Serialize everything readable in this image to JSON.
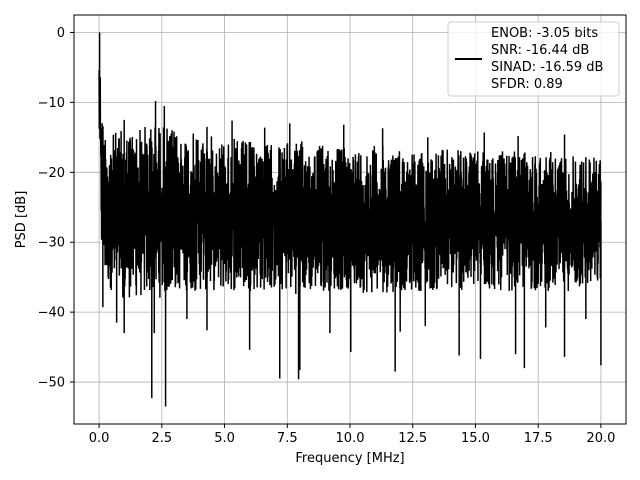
{
  "chart_data": {
    "type": "line",
    "xlabel": "Frequency [MHz]",
    "ylabel": "PSD [dB]",
    "xlim": [
      -1.0,
      21.0
    ],
    "ylim": [
      -56.0,
      2.5
    ],
    "xticks": [
      0.0,
      2.5,
      5.0,
      7.5,
      10.0,
      12.5,
      15.0,
      17.5,
      20.0
    ],
    "xtick_labels": [
      "0.0",
      "2.5",
      "5.0",
      "7.5",
      "10.0",
      "12.5",
      "15.0",
      "17.5",
      "20.0"
    ],
    "yticks": [
      0,
      -10,
      -20,
      -30,
      -40,
      -50
    ],
    "ytick_labels": [
      "0",
      "−10",
      "−20",
      "−30",
      "−40",
      "−50"
    ],
    "grid": true,
    "legend_position": "top-right",
    "legend_lines": [
      "ENOB: -3.05 bits",
      "SNR: -16.44 dB",
      "SINAD: -16.59 dB",
      "SFDR: 0.89"
    ],
    "series": [
      {
        "color": "#000000",
        "x": [
          0.0,
          0.05,
          0.1,
          0.15,
          0.2,
          0.3,
          0.5,
          0.75,
          1.0,
          1.5,
          2.0,
          2.5,
          3.0,
          4.0,
          5.0,
          6.0,
          7.0,
          8.0,
          9.0,
          10.0,
          11.0,
          12.0,
          13.0,
          14.0,
          15.0,
          16.0,
          17.0,
          18.0,
          19.0,
          20.0
        ],
        "upper": [
          0.0,
          -5.0,
          -9.0,
          -12.0,
          -13.0,
          -14.0,
          -14.5,
          -14.0,
          -14.0,
          -13.5,
          -13.0,
          -13.0,
          -14.0,
          -14.5,
          -15.0,
          -15.5,
          -16.0,
          -15.5,
          -16.0,
          -16.5,
          -16.0,
          -16.5,
          -17.0,
          -16.5,
          -17.0,
          -17.0,
          -17.0,
          -17.0,
          -17.5,
          -17.5
        ],
        "lower": [
          -15.0,
          -24.0,
          -32.0,
          -34.0,
          -35.0,
          -36.0,
          -37.0,
          -38.0,
          -38.0,
          -38.0,
          -38.0,
          -38.0,
          -37.0,
          -37.0,
          -37.0,
          -37.0,
          -37.0,
          -37.5,
          -37.0,
          -37.0,
          -37.5,
          -37.0,
          -37.0,
          -37.0,
          -37.0,
          -37.0,
          -37.0,
          -37.0,
          -37.0,
          -36.5
        ],
        "spikes_up": [
          [
            0.02,
            0.0
          ],
          [
            2.25,
            -9.8
          ],
          [
            2.6,
            -10.5
          ],
          [
            1.0,
            -12.5
          ],
          [
            5.3,
            -12.6
          ],
          [
            7.6,
            -13.0
          ],
          [
            9.75,
            -13.2
          ],
          [
            4.3,
            -13.5
          ],
          [
            11.3,
            -13.7
          ],
          [
            15.35,
            -14.3
          ],
          [
            18.55,
            -14.6
          ],
          [
            13.1,
            -15.0
          ],
          [
            16.7,
            -14.8
          ],
          [
            6.6,
            -13.6
          ]
        ],
        "spikes_down": [
          [
            2.1,
            -52.3
          ],
          [
            2.65,
            -53.5
          ],
          [
            7.2,
            -49.5
          ],
          [
            7.95,
            -49.6
          ],
          [
            8.0,
            -48.3
          ],
          [
            10.03,
            -45.7
          ],
          [
            11.8,
            -48.5
          ],
          [
            14.35,
            -46.2
          ],
          [
            15.2,
            -46.7
          ],
          [
            16.6,
            -46.0
          ],
          [
            16.95,
            -48.0
          ],
          [
            18.55,
            -46.4
          ],
          [
            20.0,
            -47.6
          ],
          [
            0.7,
            -41.5
          ],
          [
            1.0,
            -43.0
          ],
          [
            2.2,
            -43.0
          ],
          [
            6.0,
            -45.4
          ],
          [
            3.5,
            -41.0
          ],
          [
            4.3,
            -42.6
          ],
          [
            9.2,
            -43.0
          ],
          [
            12.0,
            -42.8
          ],
          [
            13.0,
            -42.0
          ],
          [
            17.8,
            -42.2
          ],
          [
            19.4,
            -41.0
          ],
          [
            0.15,
            -39.3
          ]
        ]
      }
    ]
  }
}
